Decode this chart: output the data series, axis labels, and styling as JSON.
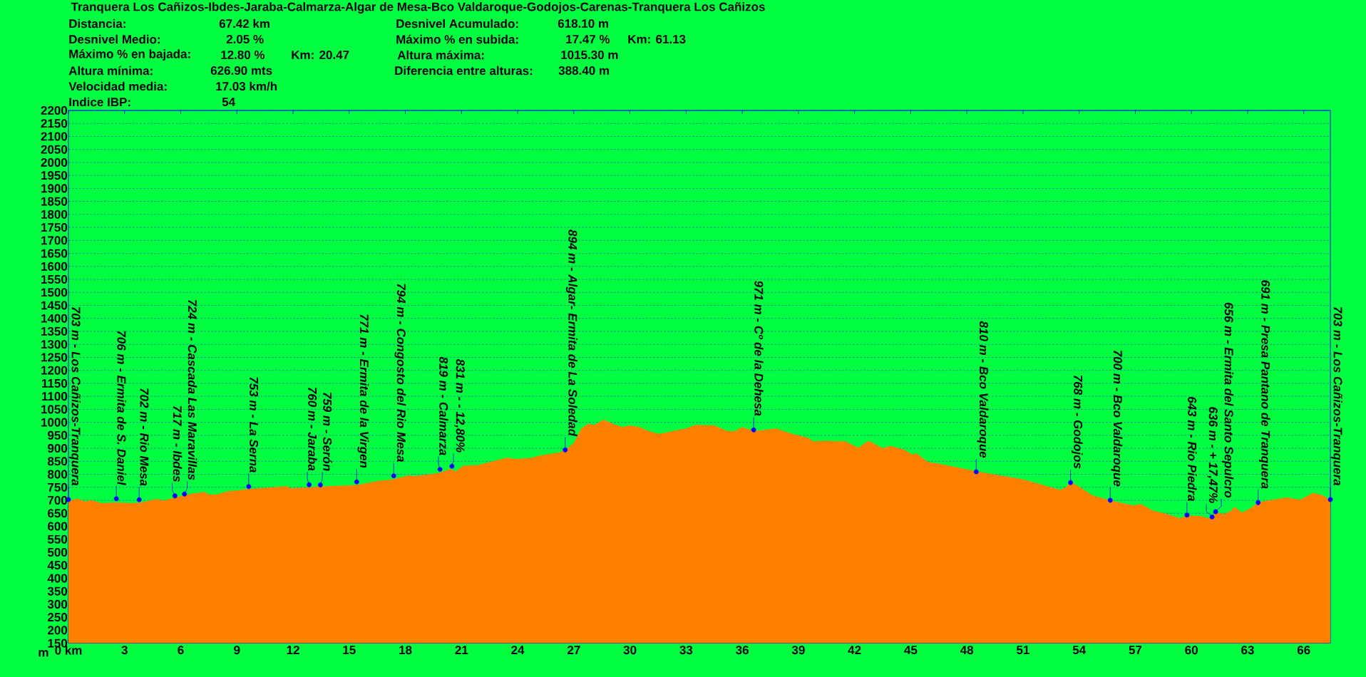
{
  "chart_data": {
    "type": "area",
    "title": "Tranquera Los Cañizos-Ibdes-Jaraba-Calmarza-Algar de Mesa-Bco Valdaroque-Godojos-Carenas-Tranquera Los Cañizos",
    "ylabel": "m",
    "xlim": [
      0,
      67.42
    ],
    "ylim": [
      150,
      2200
    ],
    "grid": "y",
    "xticks": [
      {
        "value": 0,
        "label": "0 km"
      },
      3,
      6,
      9,
      12,
      15,
      18,
      21,
      24,
      27,
      30,
      33,
      36,
      39,
      42,
      45,
      48,
      51,
      54,
      57,
      60,
      63,
      66
    ],
    "yticks": [
      150,
      200,
      250,
      300,
      350,
      400,
      450,
      500,
      550,
      600,
      650,
      700,
      750,
      800,
      850,
      900,
      950,
      1000,
      1050,
      1100,
      1150,
      1200,
      1250,
      1300,
      1350,
      1400,
      1450,
      1500,
      1550,
      1600,
      1650,
      1700,
      1750,
      1800,
      1850,
      1900,
      1950,
      2000,
      2050,
      2100,
      2150,
      2200
    ],
    "series": [
      {
        "color": "#ff8000",
        "x": [
          0,
          0.46,
          0.9,
          1.2,
          1.8,
          2.5,
          3.36,
          3.9,
          4.7,
          5.1,
          5.66,
          6.25,
          6.6,
          7.3,
          7.45,
          7.95,
          8.5,
          9.0,
          9.66,
          11.7,
          11.85,
          12.9,
          13.4,
          15.45,
          16.5,
          17.3,
          18.2,
          18.5,
          19.8,
          20.4,
          20.7,
          21.1,
          21.9,
          23.2,
          23.4,
          24.0,
          24.7,
          25.2,
          26.2,
          26.54,
          27.0,
          27.4,
          27.75,
          28.1,
          28.6,
          29.1,
          29.6,
          29.97,
          30.5,
          31.0,
          31.5,
          32.0,
          32.25,
          33.0,
          33.5,
          34.5,
          35.2,
          35.6,
          36.0,
          36.6,
          37.1,
          37.8,
          38.6,
          39.5,
          39.8,
          40.5,
          41.0,
          41.5,
          42.2,
          42.75,
          43.5,
          43.9,
          44.6,
          45.1,
          45.3,
          45.9,
          46.6,
          47.8,
          48.5,
          49.6,
          51.1,
          53.0,
          53.3,
          53.55,
          53.9,
          54.7,
          55.1,
          55.66,
          56.3,
          56.9,
          57.27,
          57.6,
          57.9,
          58.7,
          59.4,
          59.76,
          60.5,
          60.9,
          61.1,
          61.3,
          61.7,
          62.1,
          62.3,
          62.7,
          63.15,
          63.56,
          63.9,
          65.1,
          65.8,
          66.5,
          67.0,
          67.42
        ],
        "values": [
          695,
          707,
          695,
          701,
          689,
          692,
          689,
          692,
          705,
          699,
          710,
          720,
          726,
          732,
          723,
          723,
          735,
          738,
          744,
          754,
          747,
          750,
          753,
          759,
          774,
          780,
          796,
          793,
          805,
          820,
          812,
          833,
          836,
          860,
          863,
          859,
          863,
          872,
          884,
          893,
          921,
          976,
          994,
          990,
          1010,
          994,
          982,
          988,
          982,
          967,
          956,
          961,
          966,
          976,
          990,
          988,
          967,
          966,
          982,
          967,
          970,
          976,
          957,
          941,
          927,
          929,
          927,
          927,
          902,
          929,
          900,
          909,
          896,
          876,
          881,
          848,
          839,
          822,
          812,
          798,
          779,
          740,
          751,
          770,
          757,
          719,
          711,
          700,
          689,
          680,
          686,
          675,
          661,
          647,
          631,
          642,
          639,
          631,
          637,
          655,
          647,
          658,
          675,
          653,
          669,
          691,
          697,
          711,
          702,
          728,
          719,
          702
        ]
      },
      {
        "type": "scatter",
        "color": "#0000ff",
        "marker": "circle",
        "x": [
          0,
          2.56,
          3.78,
          5.69,
          6.2,
          9.63,
          12.86,
          13.46,
          15.4,
          17.38,
          19.85,
          20.49,
          26.54,
          36.61,
          48.5,
          53.54,
          55.66,
          59.76,
          61.1,
          61.29,
          63.56,
          67.42
        ],
        "values": [
          703,
          706,
          702,
          717,
          724,
          753,
          760,
          759,
          771,
          794,
          819,
          831,
          894,
          971,
          810,
          768,
          700,
          643,
          636,
          656,
          691,
          703
        ]
      }
    ],
    "annotations": [
      "Distancia:",
      "67.42 km",
      "Desnivel Acumulado:",
      "618.10 m",
      "Desnivel Medio:",
      "2.05 %",
      "Máximo % en subida:",
      "17.47 %",
      "Km: 61.13",
      "Máximo % en bajada:",
      "12.80 %",
      "Km: 20.47",
      "Altura máxima:",
      "1015.30 m",
      "Altura mínima:",
      "626.90 mts",
      "Diferencia entre alturas:",
      "388.40 m",
      "Velocidad media:",
      "17.03 km/h",
      "Indice IBP:",
      "54",
      {
        "text": "703 m - Los Cañizos-Tranquera",
        "x": 0,
        "y": 703
      },
      {
        "text": "706 m - Ermita de S. Daniel",
        "x": 2.56,
        "y": 706
      },
      {
        "text": "702 m - Rio Mesa",
        "x": 3.78,
        "y": 702
      },
      {
        "text": "717 m - Ibdes",
        "x": 5.69,
        "y": 717
      },
      {
        "text": "724 m - Cascada Las Maravillas",
        "x": 6.2,
        "y": 724
      },
      {
        "text": "753 m - La Serna",
        "x": 9.63,
        "y": 753
      },
      {
        "text": "760 m - Jaraba",
        "x": 12.86,
        "y": 760
      },
      {
        "text": "759 m - Serón",
        "x": 13.46,
        "y": 759
      },
      {
        "text": "771 m - Ermita de la Virgen",
        "x": 15.4,
        "y": 771
      },
      {
        "text": "794 m - Congosto del Rio Mesa",
        "x": 17.38,
        "y": 794
      },
      {
        "text": "819 m - Calmarza",
        "x": 19.85,
        "y": 819
      },
      {
        "text": "831 m - - 12,80%",
        "x": 20.49,
        "y": 831
      },
      {
        "text": "894 m - Algar- Ermita de La Soledad",
        "x": 26.54,
        "y": 894
      },
      {
        "text": "971 m - Cº de la Dehesa",
        "x": 36.61,
        "y": 971
      },
      {
        "text": "810 m - Bco Valdaroque",
        "x": 48.5,
        "y": 810
      },
      {
        "text": "768 m - Godojos",
        "x": 53.54,
        "y": 768
      },
      {
        "text": "700 m - Bco Valdaroque",
        "x": 55.66,
        "y": 700
      },
      {
        "text": "643 m - Rio Piedra",
        "x": 59.76,
        "y": 643
      },
      {
        "text": "636 m - + 17,47%",
        "x": 61.1,
        "y": 636
      },
      {
        "text": "656 m - Ermita del Santo Sepulcro",
        "x": 61.29,
        "y": 656
      },
      {
        "text": "691 m - Presa Pantano de Tranquera",
        "x": 63.56,
        "y": 691
      },
      {
        "text": "703 m - Los Cañizos-Tranquera",
        "x": 67.42,
        "y": 703
      }
    ]
  }
}
